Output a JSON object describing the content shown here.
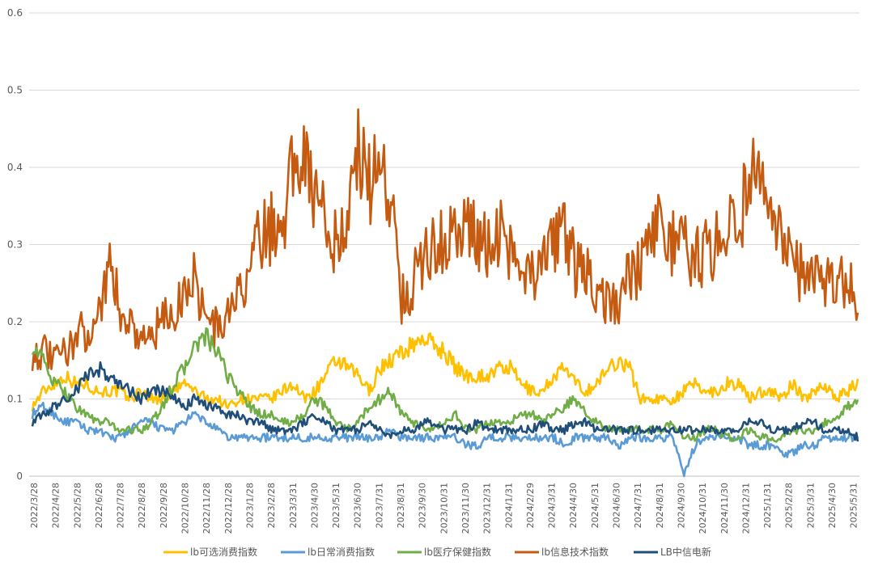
{
  "chart_data": {
    "type": "line",
    "title": "",
    "xlabel": "",
    "ylabel": "",
    "ylim": [
      0,
      0.6
    ],
    "y_ticks": [
      "0",
      "0.1",
      "0.2",
      "0.3",
      "0.4",
      "0.5",
      "0.6"
    ],
    "grid": "horizontal",
    "legend_position": "bottom",
    "x_tick_labels": [
      "2022/3/28",
      "2022/4/28",
      "2022/5/28",
      "2022/6/28",
      "2022/7/28",
      "2022/8/28",
      "2022/9/28",
      "2022/10/28",
      "2022/11/28",
      "2022/12/28",
      "2023/1/28",
      "2023/2/28",
      "2023/3/31",
      "2023/4/30",
      "2023/5/31",
      "2023/6/30",
      "2023/7/31",
      "2023/8/31",
      "2023/9/30",
      "2023/10/31",
      "2023/11/30",
      "2023/12/31",
      "2024/1/31",
      "2024/2/29",
      "2024/3/31",
      "2024/4/30",
      "2024/5/31",
      "2024/6/30",
      "2024/7/31",
      "2024/8/31",
      "2024/9/30",
      "2024/10/31",
      "2024/11/30",
      "2024/12/31",
      "2025/1/31",
      "2025/2/28",
      "2025/3/31",
      "2025/4/30",
      "2025/5/31"
    ],
    "series": [
      {
        "name": "lb可选消费指数",
        "color": "#FFC000",
        "values": [
          0.09,
          0.11,
          0.12,
          0.13,
          0.12,
          0.12,
          0.11,
          0.11,
          0.11,
          0.1,
          0.11,
          0.1,
          0.1,
          0.11,
          0.12,
          0.11,
          0.1,
          0.1,
          0.09,
          0.1,
          0.1,
          0.1,
          0.1,
          0.11,
          0.12,
          0.1,
          0.11,
          0.13,
          0.15,
          0.14,
          0.13,
          0.11,
          0.14,
          0.15,
          0.16,
          0.17,
          0.18,
          0.17,
          0.16,
          0.14,
          0.13,
          0.13,
          0.13,
          0.14,
          0.14,
          0.12,
          0.11,
          0.11,
          0.13,
          0.14,
          0.12,
          0.11,
          0.12,
          0.14,
          0.15,
          0.14,
          0.1,
          0.1,
          0.1,
          0.1,
          0.11,
          0.12,
          0.11,
          0.11,
          0.12,
          0.12,
          0.1,
          0.11,
          0.11,
          0.1,
          0.12,
          0.1,
          0.11,
          0.12,
          0.1,
          0.11,
          0.12
        ]
      },
      {
        "name": "lb日常消费指数",
        "color": "#5B9BD5",
        "values": [
          0.08,
          0.09,
          0.08,
          0.07,
          0.07,
          0.06,
          0.06,
          0.05,
          0.05,
          0.06,
          0.07,
          0.07,
          0.06,
          0.06,
          0.07,
          0.08,
          0.07,
          0.06,
          0.05,
          0.05,
          0.05,
          0.05,
          0.05,
          0.05,
          0.05,
          0.05,
          0.05,
          0.05,
          0.05,
          0.05,
          0.05,
          0.05,
          0.05,
          0.06,
          0.05,
          0.05,
          0.05,
          0.05,
          0.05,
          0.05,
          0.04,
          0.04,
          0.05,
          0.05,
          0.05,
          0.05,
          0.05,
          0.05,
          0.05,
          0.04,
          0.05,
          0.05,
          0.05,
          0.05,
          0.04,
          0.05,
          0.05,
          0.05,
          0.05,
          0.05,
          0.0,
          0.04,
          0.05,
          0.05,
          0.05,
          0.05,
          0.04,
          0.04,
          0.04,
          0.03,
          0.03,
          0.04,
          0.04,
          0.05,
          0.05,
          0.05,
          0.05
        ]
      },
      {
        "name": "lb医疗保健指数",
        "color": "#70AD47",
        "values": [
          0.17,
          0.15,
          0.12,
          0.11,
          0.09,
          0.08,
          0.07,
          0.07,
          0.06,
          0.06,
          0.06,
          0.07,
          0.09,
          0.12,
          0.14,
          0.17,
          0.18,
          0.16,
          0.13,
          0.11,
          0.09,
          0.08,
          0.08,
          0.07,
          0.07,
          0.08,
          0.1,
          0.09,
          0.07,
          0.06,
          0.07,
          0.09,
          0.1,
          0.11,
          0.08,
          0.07,
          0.06,
          0.06,
          0.07,
          0.08,
          0.06,
          0.06,
          0.07,
          0.07,
          0.07,
          0.08,
          0.08,
          0.07,
          0.08,
          0.09,
          0.1,
          0.08,
          0.07,
          0.06,
          0.06,
          0.06,
          0.06,
          0.06,
          0.06,
          0.07,
          0.05,
          0.05,
          0.06,
          0.06,
          0.05,
          0.05,
          0.06,
          0.05,
          0.05,
          0.05,
          0.06,
          0.06,
          0.06,
          0.07,
          0.07,
          0.09,
          0.1
        ]
      },
      {
        "name": "lb信息技术指数",
        "color": "#C55A11",
        "values": [
          0.16,
          0.16,
          0.15,
          0.16,
          0.18,
          0.19,
          0.2,
          0.28,
          0.22,
          0.2,
          0.18,
          0.18,
          0.2,
          0.21,
          0.24,
          0.26,
          0.2,
          0.19,
          0.21,
          0.23,
          0.27,
          0.31,
          0.32,
          0.33,
          0.4,
          0.44,
          0.36,
          0.33,
          0.3,
          0.34,
          0.42,
          0.38,
          0.4,
          0.37,
          0.23,
          0.25,
          0.28,
          0.31,
          0.3,
          0.32,
          0.33,
          0.3,
          0.3,
          0.32,
          0.29,
          0.28,
          0.26,
          0.27,
          0.3,
          0.32,
          0.27,
          0.26,
          0.24,
          0.23,
          0.22,
          0.26,
          0.27,
          0.3,
          0.33,
          0.3,
          0.3,
          0.28,
          0.29,
          0.3,
          0.33,
          0.32,
          0.39,
          0.37,
          0.34,
          0.3,
          0.27,
          0.26,
          0.27,
          0.25,
          0.24,
          0.26,
          0.23
        ]
      },
      {
        "name": "LB中信电新",
        "color": "#1F4E79",
        "values": [
          0.07,
          0.08,
          0.09,
          0.1,
          0.11,
          0.13,
          0.14,
          0.13,
          0.12,
          0.11,
          0.1,
          0.11,
          0.11,
          0.1,
          0.09,
          0.1,
          0.09,
          0.09,
          0.08,
          0.08,
          0.07,
          0.07,
          0.06,
          0.06,
          0.06,
          0.07,
          0.08,
          0.07,
          0.06,
          0.06,
          0.06,
          0.07,
          0.06,
          0.05,
          0.06,
          0.06,
          0.07,
          0.07,
          0.06,
          0.06,
          0.06,
          0.07,
          0.06,
          0.06,
          0.06,
          0.06,
          0.06,
          0.07,
          0.06,
          0.06,
          0.07,
          0.07,
          0.06,
          0.06,
          0.06,
          0.06,
          0.06,
          0.06,
          0.06,
          0.06,
          0.06,
          0.06,
          0.06,
          0.06,
          0.06,
          0.06,
          0.07,
          0.07,
          0.06,
          0.06,
          0.06,
          0.07,
          0.07,
          0.06,
          0.06,
          0.06,
          0.05
        ]
      }
    ]
  }
}
